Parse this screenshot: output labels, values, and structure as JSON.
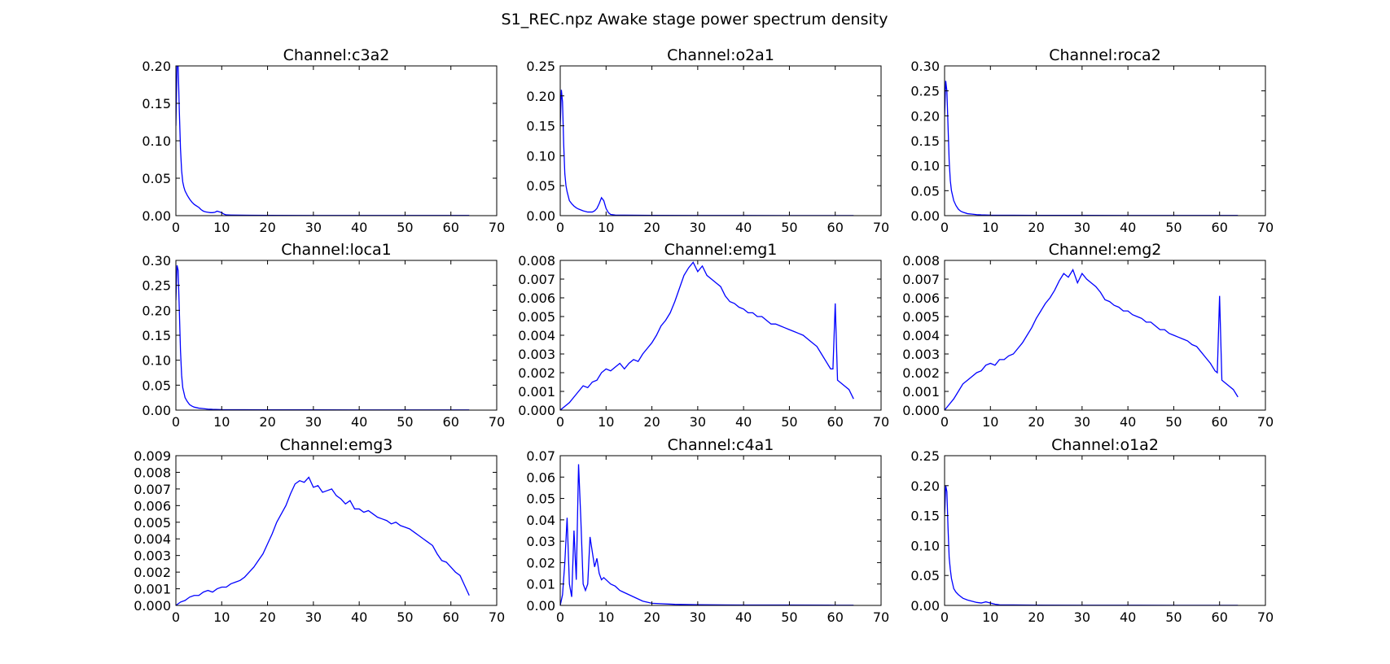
{
  "figure": {
    "title": "S1_REC.npz Awake stage power spectrum density",
    "line_color": "#0000ff"
  },
  "chart_data": [
    {
      "type": "line",
      "title": "Channel:c3a2",
      "xlim": [
        0,
        70
      ],
      "ylim": [
        0,
        0.2
      ],
      "xticks": [
        "0",
        "10",
        "20",
        "30",
        "40",
        "50",
        "60",
        "70"
      ],
      "yticks": [
        "0.00",
        "0.05",
        "0.10",
        "0.15",
        "0.20"
      ],
      "series": [
        {
          "x": [
            0,
            0.25,
            0.5,
            0.75,
            1,
            1.25,
            1.5,
            1.75,
            2,
            2.5,
            3,
            3.5,
            4,
            4.5,
            5,
            5.5,
            6,
            6.5,
            7,
            7.5,
            8,
            8.5,
            9,
            9.5,
            10,
            10.5,
            11,
            12,
            14,
            16,
            20,
            30,
            40,
            50,
            60,
            64
          ],
          "y": [
            0.12,
            0.2,
            0.2,
            0.14,
            0.09,
            0.06,
            0.045,
            0.038,
            0.033,
            0.027,
            0.022,
            0.018,
            0.015,
            0.013,
            0.011,
            0.008,
            0.006,
            0.005,
            0.0045,
            0.004,
            0.004,
            0.0045,
            0.006,
            0.005,
            0.004,
            0.002,
            0.001,
            0.0008,
            0.0006,
            0.0005,
            0.0004,
            0.0003,
            0.0002,
            0.0002,
            0.0002,
            0.0002
          ]
        }
      ]
    },
    {
      "type": "line",
      "title": "Channel:o2a1",
      "xlim": [
        0,
        70
      ],
      "ylim": [
        0,
        0.25
      ],
      "xticks": [
        "0",
        "10",
        "20",
        "30",
        "40",
        "50",
        "60",
        "70"
      ],
      "yticks": [
        "0.00",
        "0.05",
        "0.10",
        "0.15",
        "0.20",
        "0.25"
      ],
      "series": [
        {
          "x": [
            0,
            0.25,
            0.5,
            0.75,
            1,
            1.25,
            1.5,
            2,
            2.5,
            3,
            3.5,
            4,
            5,
            6,
            7,
            7.5,
            8,
            8.5,
            9,
            9.5,
            10,
            10.5,
            11,
            12,
            14,
            20,
            30,
            40,
            50,
            60,
            64
          ],
          "y": [
            0.15,
            0.21,
            0.19,
            0.12,
            0.07,
            0.05,
            0.04,
            0.025,
            0.02,
            0.016,
            0.013,
            0.011,
            0.008,
            0.006,
            0.006,
            0.008,
            0.012,
            0.02,
            0.03,
            0.025,
            0.012,
            0.005,
            0.002,
            0.001,
            0.0008,
            0.0005,
            0.0003,
            0.0003,
            0.0002,
            0.0002,
            0.0002
          ]
        }
      ]
    },
    {
      "type": "line",
      "title": "Channel:roca2",
      "xlim": [
        0,
        70
      ],
      "ylim": [
        0,
        0.3
      ],
      "xticks": [
        "0",
        "10",
        "20",
        "30",
        "40",
        "50",
        "60",
        "70"
      ],
      "yticks": [
        "0.00",
        "0.05",
        "0.10",
        "0.15",
        "0.20",
        "0.25",
        "0.30"
      ],
      "series": [
        {
          "x": [
            0,
            0.25,
            0.5,
            0.75,
            1,
            1.25,
            1.5,
            2,
            2.5,
            3,
            3.5,
            4,
            5,
            6,
            7,
            8,
            10,
            15,
            20,
            30,
            40,
            50,
            60,
            64
          ],
          "y": [
            0.2,
            0.27,
            0.25,
            0.18,
            0.11,
            0.07,
            0.05,
            0.03,
            0.02,
            0.013,
            0.009,
            0.007,
            0.004,
            0.003,
            0.002,
            0.0015,
            0.001,
            0.0008,
            0.0006,
            0.0005,
            0.0004,
            0.0004,
            0.0003,
            0.0003
          ]
        }
      ]
    },
    {
      "type": "line",
      "title": "Channel:loca1",
      "xlim": [
        0,
        70
      ],
      "ylim": [
        0,
        0.3
      ],
      "xticks": [
        "0",
        "10",
        "20",
        "30",
        "40",
        "50",
        "60",
        "70"
      ],
      "yticks": [
        "0.00",
        "0.05",
        "0.10",
        "0.15",
        "0.20",
        "0.25",
        "0.30"
      ],
      "series": [
        {
          "x": [
            0,
            0.25,
            0.5,
            0.75,
            1,
            1.25,
            1.5,
            2,
            2.5,
            3,
            3.5,
            4,
            5,
            6,
            7,
            8,
            10,
            15,
            20,
            30,
            40,
            50,
            60,
            64
          ],
          "y": [
            0.22,
            0.29,
            0.28,
            0.2,
            0.12,
            0.07,
            0.045,
            0.025,
            0.017,
            0.011,
            0.008,
            0.006,
            0.004,
            0.003,
            0.002,
            0.0015,
            0.001,
            0.0008,
            0.0006,
            0.0005,
            0.0004,
            0.0004,
            0.0003,
            0.0003
          ]
        }
      ]
    },
    {
      "type": "line",
      "title": "Channel:emg1",
      "xlim": [
        0,
        70
      ],
      "ylim": [
        0,
        0.008
      ],
      "xticks": [
        "0",
        "10",
        "20",
        "30",
        "40",
        "50",
        "60",
        "70"
      ],
      "yticks": [
        "0.000",
        "0.001",
        "0.002",
        "0.003",
        "0.004",
        "0.005",
        "0.006",
        "0.007",
        "0.008"
      ],
      "series": [
        {
          "x": [
            0,
            1,
            2,
            3,
            4,
            5,
            6,
            7,
            8,
            9,
            10,
            11,
            12,
            13,
            14,
            15,
            16,
            17,
            18,
            19,
            20,
            21,
            22,
            23,
            24,
            25,
            26,
            27,
            28,
            29,
            30,
            31,
            32,
            33,
            34,
            35,
            36,
            37,
            38,
            39,
            40,
            41,
            42,
            43,
            44,
            45,
            46,
            47,
            48,
            49,
            50,
            51,
            52,
            53,
            54,
            55,
            56,
            57,
            58,
            59,
            59.5,
            60,
            60.5,
            61,
            62,
            63,
            64
          ],
          "y": [
            0,
            0.0002,
            0.0004,
            0.0007,
            0.001,
            0.0013,
            0.0012,
            0.0015,
            0.0016,
            0.002,
            0.0022,
            0.0021,
            0.0023,
            0.0025,
            0.0022,
            0.0025,
            0.0027,
            0.0026,
            0.003,
            0.0033,
            0.0036,
            0.004,
            0.0045,
            0.0048,
            0.0052,
            0.0058,
            0.0065,
            0.0072,
            0.0076,
            0.0079,
            0.0074,
            0.0077,
            0.0072,
            0.007,
            0.0068,
            0.0066,
            0.0061,
            0.0058,
            0.0057,
            0.0055,
            0.0054,
            0.0052,
            0.0052,
            0.005,
            0.005,
            0.0048,
            0.0046,
            0.0046,
            0.0045,
            0.0044,
            0.0043,
            0.0042,
            0.0041,
            0.004,
            0.0038,
            0.0036,
            0.0034,
            0.003,
            0.0026,
            0.0022,
            0.0022,
            0.0057,
            0.0016,
            0.0015,
            0.0013,
            0.0011,
            0.0006
          ]
        }
      ]
    },
    {
      "type": "line",
      "title": "Channel:emg2",
      "xlim": [
        0,
        70
      ],
      "ylim": [
        0,
        0.008
      ],
      "xticks": [
        "0",
        "10",
        "20",
        "30",
        "40",
        "50",
        "60",
        "70"
      ],
      "yticks": [
        "0.000",
        "0.001",
        "0.002",
        "0.003",
        "0.004",
        "0.005",
        "0.006",
        "0.007",
        "0.008"
      ],
      "series": [
        {
          "x": [
            0,
            1,
            2,
            3,
            4,
            5,
            6,
            7,
            8,
            9,
            10,
            11,
            12,
            13,
            14,
            15,
            16,
            17,
            18,
            19,
            20,
            21,
            22,
            23,
            24,
            25,
            26,
            27,
            28,
            29,
            30,
            31,
            32,
            33,
            34,
            35,
            36,
            37,
            38,
            39,
            40,
            41,
            42,
            43,
            44,
            45,
            46,
            47,
            48,
            49,
            50,
            51,
            52,
            53,
            54,
            55,
            56,
            57,
            58,
            59,
            59.5,
            60,
            60.5,
            61,
            62,
            63,
            64
          ],
          "y": [
            0,
            0.0003,
            0.0006,
            0.001,
            0.0014,
            0.0016,
            0.0018,
            0.002,
            0.0021,
            0.0024,
            0.0025,
            0.0024,
            0.0027,
            0.0027,
            0.0029,
            0.003,
            0.0033,
            0.0036,
            0.004,
            0.0044,
            0.0049,
            0.0053,
            0.0057,
            0.006,
            0.0064,
            0.0069,
            0.0073,
            0.0071,
            0.0075,
            0.0068,
            0.0073,
            0.007,
            0.0068,
            0.0066,
            0.0063,
            0.0059,
            0.0058,
            0.0056,
            0.0055,
            0.0053,
            0.0053,
            0.0051,
            0.005,
            0.0049,
            0.0047,
            0.0047,
            0.0045,
            0.0043,
            0.0043,
            0.0041,
            0.004,
            0.0039,
            0.0038,
            0.0037,
            0.0035,
            0.0034,
            0.0031,
            0.0028,
            0.0025,
            0.0021,
            0.002,
            0.0061,
            0.0016,
            0.0015,
            0.0013,
            0.0011,
            0.0007
          ]
        }
      ]
    },
    {
      "type": "line",
      "title": "Channel:emg3",
      "xlim": [
        0,
        70
      ],
      "ylim": [
        0,
        0.009
      ],
      "xticks": [
        "0",
        "10",
        "20",
        "30",
        "40",
        "50",
        "60",
        "70"
      ],
      "yticks": [
        "0.000",
        "0.001",
        "0.002",
        "0.003",
        "0.004",
        "0.005",
        "0.006",
        "0.007",
        "0.008",
        "0.009"
      ],
      "series": [
        {
          "x": [
            0,
            1,
            2,
            3,
            4,
            5,
            6,
            7,
            8,
            9,
            10,
            11,
            12,
            13,
            14,
            15,
            16,
            17,
            18,
            19,
            20,
            21,
            22,
            23,
            24,
            25,
            26,
            27,
            28,
            29,
            30,
            31,
            32,
            33,
            34,
            35,
            36,
            37,
            38,
            39,
            40,
            41,
            42,
            43,
            44,
            45,
            46,
            47,
            48,
            49,
            50,
            51,
            52,
            53,
            54,
            55,
            56,
            57,
            58,
            59,
            60,
            61,
            62,
            63,
            64
          ],
          "y": [
            0,
            0.0002,
            0.0003,
            0.0005,
            0.0006,
            0.0006,
            0.0008,
            0.0009,
            0.0008,
            0.001,
            0.0011,
            0.0011,
            0.0013,
            0.0014,
            0.0015,
            0.0017,
            0.002,
            0.0023,
            0.0027,
            0.0031,
            0.0037,
            0.0043,
            0.005,
            0.0055,
            0.006,
            0.0067,
            0.0073,
            0.0075,
            0.0074,
            0.0077,
            0.0071,
            0.0072,
            0.0068,
            0.0069,
            0.007,
            0.0066,
            0.0064,
            0.0061,
            0.0063,
            0.0058,
            0.0058,
            0.0056,
            0.0057,
            0.0055,
            0.0053,
            0.0052,
            0.0051,
            0.0049,
            0.005,
            0.0048,
            0.0047,
            0.0046,
            0.0044,
            0.0042,
            0.004,
            0.0038,
            0.0036,
            0.0031,
            0.0027,
            0.0026,
            0.0023,
            0.002,
            0.0018,
            0.0012,
            0.0006
          ]
        }
      ]
    },
    {
      "type": "line",
      "title": "Channel:c4a1",
      "xlim": [
        0,
        70
      ],
      "ylim": [
        0,
        0.07
      ],
      "xticks": [
        "0",
        "10",
        "20",
        "30",
        "40",
        "50",
        "60",
        "70"
      ],
      "yticks": [
        "0.00",
        "0.01",
        "0.02",
        "0.03",
        "0.04",
        "0.05",
        "0.06",
        "0.07"
      ],
      "series": [
        {
          "x": [
            0,
            0.5,
            1,
            1.5,
            2,
            2.5,
            3,
            3.5,
            4,
            4.5,
            5,
            5.5,
            6,
            6.5,
            7,
            7.5,
            8,
            8.5,
            9,
            9.5,
            10,
            11,
            12,
            13,
            14,
            15,
            16,
            18,
            20,
            22,
            25,
            30,
            40,
            50,
            60,
            64
          ],
          "y": [
            0,
            0.005,
            0.02,
            0.041,
            0.01,
            0.004,
            0.035,
            0.012,
            0.066,
            0.04,
            0.01,
            0.007,
            0.01,
            0.032,
            0.025,
            0.018,
            0.022,
            0.015,
            0.012,
            0.013,
            0.012,
            0.01,
            0.009,
            0.007,
            0.006,
            0.005,
            0.004,
            0.002,
            0.001,
            0.0008,
            0.0005,
            0.0003,
            0.0002,
            0.0002,
            0.0001,
            0.0001
          ]
        }
      ]
    },
    {
      "type": "line",
      "title": "Channel:o1a2",
      "xlim": [
        0,
        70
      ],
      "ylim": [
        0,
        0.25
      ],
      "xticks": [
        "0",
        "10",
        "20",
        "30",
        "40",
        "50",
        "60",
        "70"
      ],
      "yticks": [
        "0.00",
        "0.05",
        "0.10",
        "0.15",
        "0.20",
        "0.25"
      ],
      "series": [
        {
          "x": [
            0,
            0.25,
            0.5,
            0.75,
            1,
            1.25,
            1.5,
            2,
            2.5,
            3,
            3.5,
            4,
            5,
            6,
            7,
            8,
            8.5,
            9,
            9.5,
            10,
            11,
            12,
            15,
            20,
            30,
            40,
            50,
            60,
            64
          ],
          "y": [
            0.15,
            0.2,
            0.19,
            0.13,
            0.08,
            0.06,
            0.045,
            0.028,
            0.022,
            0.018,
            0.015,
            0.012,
            0.009,
            0.007,
            0.005,
            0.004,
            0.005,
            0.006,
            0.005,
            0.004,
            0.002,
            0.001,
            0.0008,
            0.0005,
            0.0003,
            0.0003,
            0.0002,
            0.0002,
            0.0002
          ]
        }
      ]
    }
  ]
}
